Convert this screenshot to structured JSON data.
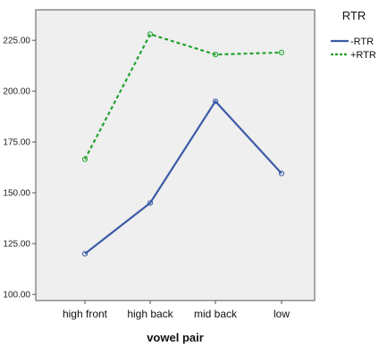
{
  "chart_data": {
    "type": "line",
    "categories": [
      "high front",
      "high back",
      "mid back",
      "low"
    ],
    "xlabel": "vowel pair",
    "ylabel": "",
    "ylim": [
      97,
      240
    ],
    "yticks": [
      "100.00",
      "125.00",
      "150.00",
      "175.00",
      "200.00",
      "225.00"
    ],
    "ytick_values": [
      100,
      125,
      150,
      175,
      200,
      225
    ],
    "grid": false,
    "legend": {
      "title": "RTR",
      "placement": "right"
    },
    "series": [
      {
        "name": "-RTR",
        "values": [
          120,
          145,
          195,
          159.5
        ],
        "color": "#3b5ba7",
        "style": "solid"
      },
      {
        "name": "+RTR",
        "values": [
          166.5,
          228,
          218,
          219
        ],
        "color": "#21a32f",
        "style": "dashed"
      }
    ],
    "plot_background": "#efefef"
  }
}
